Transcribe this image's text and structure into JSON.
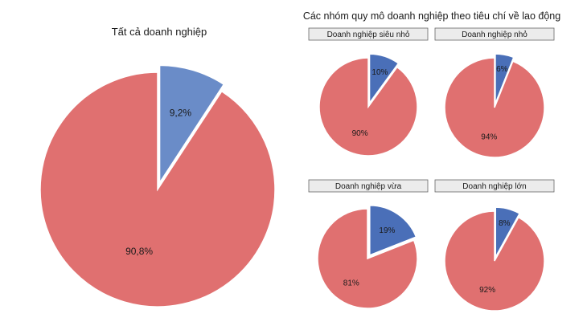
{
  "group_title": "Các nhóm quy mô doanh nghiệp theo tiêu chí về lao động",
  "colors": {
    "slice_red": "#e07070",
    "slice_blue_main": "#6a8cc8",
    "slice_blue": "#4a6fb8",
    "panel_border": "#666666",
    "panel_fill": "#ececec"
  },
  "chart_data": [
    {
      "type": "pie",
      "title": "Tất cả doanh nghiệp",
      "labels": [
        "9,2%",
        "90,8%"
      ],
      "values": [
        9.2,
        90.8
      ],
      "colors": [
        "#6a8cc8",
        "#e07070"
      ],
      "exploded_slice": 0
    },
    {
      "type": "pie",
      "title": "Doanh nghiệp siêu nhỏ",
      "labels": [
        "10%",
        "90%"
      ],
      "values": [
        10,
        90
      ],
      "colors": [
        "#4a6fb8",
        "#e07070"
      ],
      "exploded_slice": 0
    },
    {
      "type": "pie",
      "title": "Doanh nghiệp nhỏ",
      "labels": [
        "6%",
        "94%"
      ],
      "values": [
        6,
        94
      ],
      "colors": [
        "#4a6fb8",
        "#e07070"
      ],
      "exploded_slice": 0
    },
    {
      "type": "pie",
      "title": "Doanh nghiệp vừa",
      "labels": [
        "19%",
        "81%"
      ],
      "values": [
        19,
        81
      ],
      "colors": [
        "#4a6fb8",
        "#e07070"
      ],
      "exploded_slice": 0
    },
    {
      "type": "pie",
      "title": "Doanh nghiệp lớn",
      "labels": [
        "8%",
        "92%"
      ],
      "values": [
        8,
        92
      ],
      "colors": [
        "#4a6fb8",
        "#e07070"
      ],
      "exploded_slice": 0
    }
  ]
}
